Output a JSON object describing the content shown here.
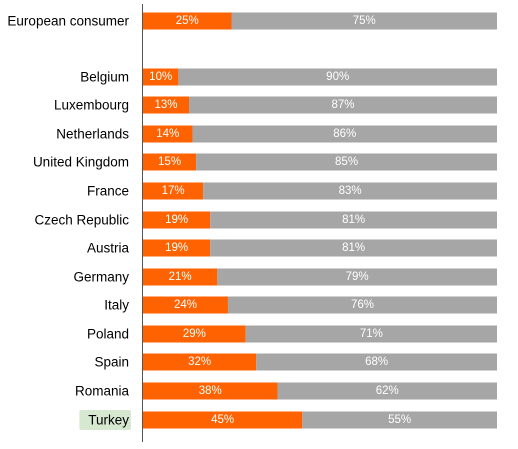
{
  "chart_data": {
    "type": "bar",
    "orientation": "horizontal",
    "stacked": true,
    "normalized_percent": true,
    "title": "",
    "xlabel": "",
    "ylabel": "",
    "xlim": [
      0,
      100
    ],
    "grid": false,
    "legend": "none",
    "categories": [
      "European consumer",
      "Belgium",
      "Luxembourg",
      "Netherlands",
      "United Kingdom",
      "France",
      "Czech Republic",
      "Austria",
      "Germany",
      "Italy",
      "Poland",
      "Spain",
      "Romania",
      "Turkey"
    ],
    "highlighted_category": "Turkey",
    "series": [
      {
        "color": "#FF6200",
        "values": [
          25,
          10,
          13,
          14,
          15,
          17,
          19,
          19,
          21,
          24,
          29,
          32,
          38,
          45
        ],
        "labels": [
          "25%",
          "10%",
          "13%",
          "14%",
          "15%",
          "17%",
          "19%",
          "19%",
          "21%",
          "24%",
          "29%",
          "32%",
          "38%",
          "45%"
        ]
      },
      {
        "color": "#A6A6A6",
        "values": [
          75,
          90,
          87,
          86,
          85,
          83,
          81,
          81,
          79,
          76,
          71,
          68,
          62,
          55
        ],
        "labels": [
          "75%",
          "90%",
          "87%",
          "86%",
          "85%",
          "83%",
          "81%",
          "81%",
          "79%",
          "76%",
          "71%",
          "68%",
          "62%",
          "55%"
        ]
      }
    ],
    "colors": {
      "highlight_background": "#D6E8CF",
      "axis_line": "#555555",
      "category_text": "#000000",
      "data_label_text": "#FFFFFF"
    }
  }
}
